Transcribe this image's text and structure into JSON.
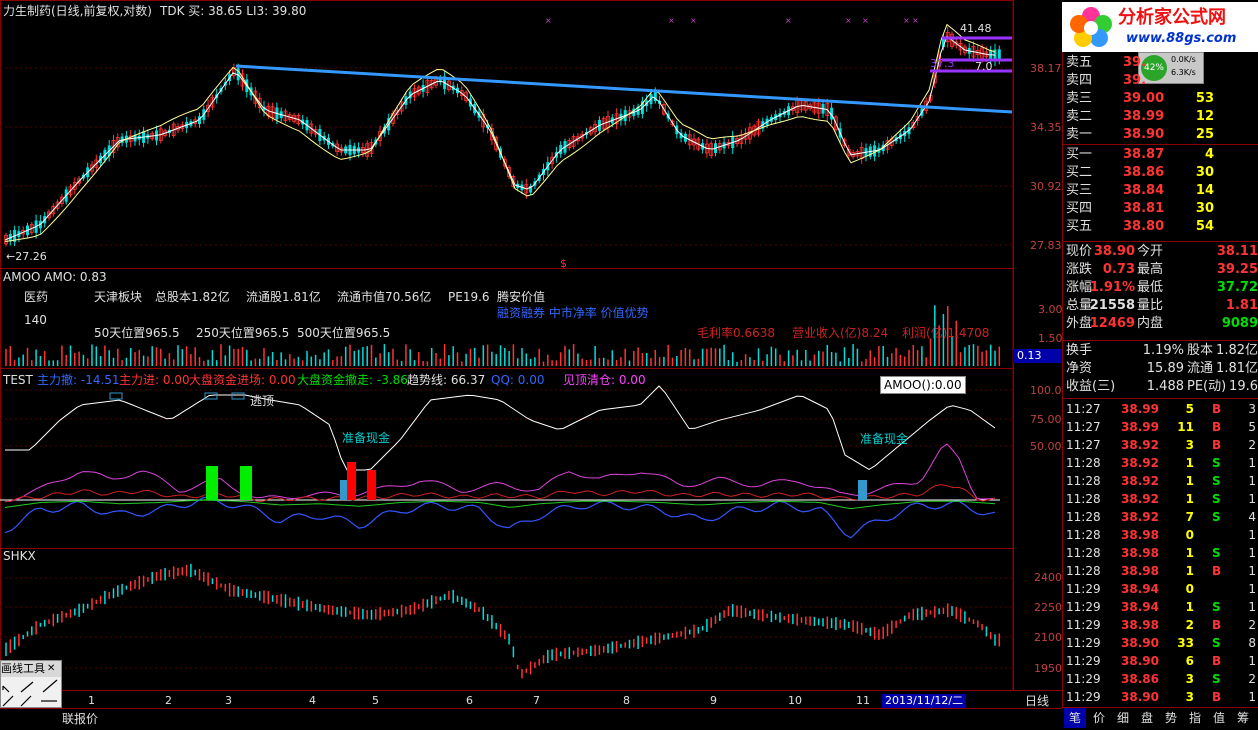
{
  "header": {
    "title": "力生制药(日线,前复权,对数)",
    "indicators": "TDK  买: 38.65  LI3: 39.80"
  },
  "logo": {
    "name": "分析家公式网",
    "url": "www.88gs.com"
  },
  "main_chart": {
    "y_ticks": [
      "38.17",
      "34.35",
      "30.92",
      "27.83"
    ],
    "low_label": "←27.26",
    "high_label": "41.48",
    "sub_label": "37.3",
    "sub_label2": "7.0",
    "dollar_mark": "$"
  },
  "gauge": {
    "percent": "42%",
    "up_rate": "0.0K/s",
    "down_rate": "6.3K/s"
  },
  "amoo_panel": {
    "title": "AMOO  AMO: 0.83",
    "industry": "医药",
    "industry_code": "140",
    "region": "天津板块",
    "total_shares": "总股本1.82亿",
    "float_shares": "流通股1.81亿",
    "float_mv": "流通市值70.56亿",
    "pe": "PE19.6",
    "concept": "腾安价值",
    "pos50": "50天位置965.5",
    "pos250": "250天位置965.5",
    "pos500": "500天位置965.5",
    "blue_note": "融资融券  中市净率  价值优势",
    "margin": "毛利率0.6638",
    "revenue": "营业收入(亿)8.24",
    "profit": "利润(亿)1.4708",
    "y_ticks": [
      "3.00",
      "1.50"
    ],
    "cur_value": "0.13"
  },
  "test_panel": {
    "name": "TEST",
    "main_out": "主力撤: -14.51",
    "main_in": "主力进: 0.00",
    "market_in": "大盘资金进场: 0.00",
    "market_out": "大盘资金撤走: -3.86",
    "trend": "趋势线: 66.37",
    "qq": "QQ: 0.00",
    "top_clear": "见顶清仓: 0.00",
    "y_ticks": [
      "100.0",
      "75.00",
      "50.00"
    ],
    "tooltip": "AMOO():0.00",
    "label_top": "逃顶",
    "label_ready1": "准备现金",
    "label_ready2": "准备现金"
  },
  "shkx_panel": {
    "name": "SHKX",
    "y_ticks": [
      "2400",
      "2250",
      "2100",
      "1950"
    ]
  },
  "time_axis": {
    "months": [
      "1",
      "2",
      "3",
      "4",
      "5",
      "6",
      "7",
      "8",
      "9",
      "10",
      "11"
    ],
    "cursor_date": "2013/11/12/二",
    "period": "日线"
  },
  "toolbox": {
    "title": "画线工具",
    "close": "✕"
  },
  "bottom_bar": {
    "item": "联报价"
  },
  "order_book": {
    "asks": [
      {
        "label": "卖五",
        "price": "39.",
        "vol": ""
      },
      {
        "label": "卖四",
        "price": "39.",
        "vol": ""
      },
      {
        "label": "卖三",
        "price": "39.00",
        "vol": "53"
      },
      {
        "label": "卖二",
        "price": "38.99",
        "vol": "12"
      },
      {
        "label": "卖一",
        "price": "38.90",
        "vol": "25"
      }
    ],
    "bids": [
      {
        "label": "买一",
        "price": "38.87",
        "vol": "4"
      },
      {
        "label": "买二",
        "price": "38.86",
        "vol": "30"
      },
      {
        "label": "买三",
        "price": "38.84",
        "vol": "14"
      },
      {
        "label": "买四",
        "price": "38.81",
        "vol": "30"
      },
      {
        "label": "买五",
        "price": "38.80",
        "vol": "54"
      }
    ]
  },
  "quote": [
    {
      "l1": "现价",
      "v1": "38.90",
      "c1": "red",
      "l2": "今开",
      "v2": "38.11",
      "c2": "red"
    },
    {
      "l1": "涨跌",
      "v1": "0.73",
      "c1": "red",
      "l2": "最高",
      "v2": "39.25",
      "c2": "red"
    },
    {
      "l1": "涨幅",
      "v1": "1.91%",
      "c1": "red",
      "l2": "最低",
      "v2": "37.72",
      "c2": "green"
    },
    {
      "l1": "总量",
      "v1": "21558",
      "c1": "white",
      "l2": "量比",
      "v2": "1.81",
      "c2": "red"
    },
    {
      "l1": "外盘",
      "v1": "12469",
      "c1": "red",
      "l2": "内盘",
      "v2": "9089",
      "c2": "green"
    }
  ],
  "fundamentals": [
    {
      "l1": "换手",
      "v1": "1.19%",
      "l2": "股本",
      "v2": "1.82亿"
    },
    {
      "l1": "净资",
      "v1": "15.89",
      "l2": "流通",
      "v2": "1.81亿"
    },
    {
      "l1": "收益(三)",
      "v1": "1.488",
      "l2": "PE(动)",
      "v2": "19.6"
    }
  ],
  "ticks": [
    {
      "time": "11:27",
      "price": "38.99",
      "vol": "5",
      "side": "B",
      "n": "3"
    },
    {
      "time": "11:27",
      "price": "38.99",
      "vol": "11",
      "side": "B",
      "n": "5"
    },
    {
      "time": "11:27",
      "price": "38.92",
      "vol": "3",
      "side": "B",
      "n": "2"
    },
    {
      "time": "11:28",
      "price": "38.92",
      "vol": "1",
      "side": "S",
      "n": "1"
    },
    {
      "time": "11:28",
      "price": "38.92",
      "vol": "1",
      "side": "S",
      "n": "1"
    },
    {
      "time": "11:28",
      "price": "38.92",
      "vol": "1",
      "side": "S",
      "n": "1"
    },
    {
      "time": "11:28",
      "price": "38.92",
      "vol": "7",
      "side": "S",
      "n": "4"
    },
    {
      "time": "11:28",
      "price": "38.98",
      "vol": "0",
      "side": "",
      "n": "1"
    },
    {
      "time": "11:28",
      "price": "38.98",
      "vol": "1",
      "side": "S",
      "n": "1"
    },
    {
      "time": "11:28",
      "price": "38.98",
      "vol": "1",
      "side": "B",
      "n": "1"
    },
    {
      "time": "11:29",
      "price": "38.94",
      "vol": "0",
      "side": "",
      "n": "1"
    },
    {
      "time": "11:29",
      "price": "38.94",
      "vol": "1",
      "side": "S",
      "n": "1"
    },
    {
      "time": "11:29",
      "price": "38.98",
      "vol": "2",
      "side": "B",
      "n": "2"
    },
    {
      "time": "11:29",
      "price": "38.90",
      "vol": "33",
      "side": "S",
      "n": "8"
    },
    {
      "time": "11:29",
      "price": "38.90",
      "vol": "6",
      "side": "B",
      "n": "1"
    },
    {
      "time": "11:29",
      "price": "38.86",
      "vol": "3",
      "side": "S",
      "n": "2"
    },
    {
      "time": "11:29",
      "price": "38.90",
      "vol": "3",
      "side": "B",
      "n": "1"
    }
  ],
  "tabs": [
    "笔",
    "价",
    "细",
    "盘",
    "势",
    "指",
    "值",
    "筹"
  ],
  "colors": {
    "up": "#ff3333",
    "down": "#00dddd",
    "trendline": "#3399ff",
    "resistance": "#9933ff",
    "border": "#8b0000"
  }
}
